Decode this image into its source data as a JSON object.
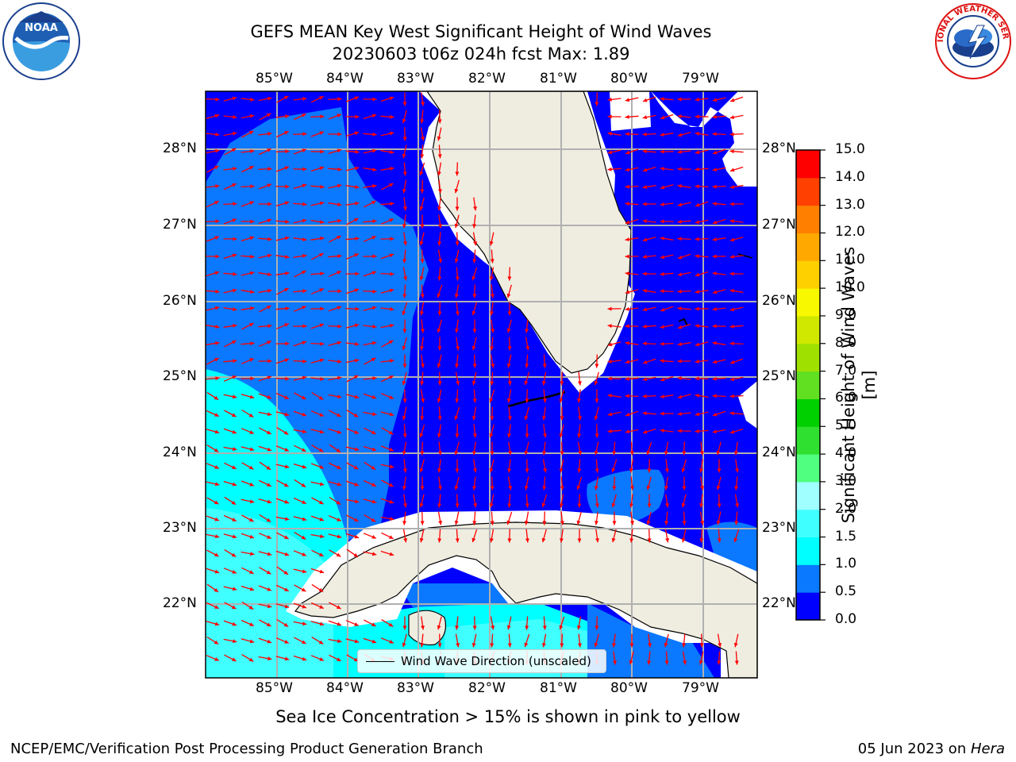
{
  "header": {
    "title_line1": "GEFS MEAN Key West Significant Height of Wind Waves",
    "title_line2": "20230603 t06z 024h fcst   Max: 1.89"
  },
  "logos": {
    "left": {
      "text": "NOAA",
      "ring_text": "NATIONAL OCEANIC AND ATMOSPHERIC ADMINISTRATION · U.S. DEPARTMENT OF COMMERCE"
    },
    "right": {
      "ring_text": "NATIONAL WEATHER SERVICE"
    }
  },
  "map": {
    "lon_labels": [
      "85°W",
      "84°W",
      "83°W",
      "82°W",
      "81°W",
      "80°W",
      "79°W"
    ],
    "lat_labels": [
      "28°N",
      "27°N",
      "26°N",
      "25°N",
      "24°N",
      "23°N",
      "22°N"
    ],
    "legend_label": "Wind Wave Direction (unscaled)",
    "colors": {
      "ocean_0_05": "#0000ff",
      "ocean_05_10": "#0a78ff",
      "ocean_10_15": "#00ffff",
      "ocean_15_20": "#40ffff",
      "land": "#efede0",
      "arrow": "#ff0000",
      "grid": "#b0b0b0"
    }
  },
  "colorbar": {
    "label": "Significant Height of Wind Waves [m]",
    "ticks": [
      "0.0",
      "0.5",
      "1.0",
      "1.5",
      "2.0",
      "3.0",
      "4.0",
      "5.0",
      "6.0",
      "7.0",
      "8.0",
      "9.0",
      "10.0",
      "11.0",
      "12.0",
      "13.0",
      "14.0",
      "15.0"
    ],
    "colors": [
      "#0000ff",
      "#0a78ff",
      "#00ffff",
      "#40ffff",
      "#a0ffff",
      "#50ff80",
      "#30e030",
      "#00d000",
      "#60e020",
      "#a0e000",
      "#d0e800",
      "#f8f800",
      "#ffd000",
      "#ffa800",
      "#ff8000",
      "#ff4000",
      "#ff0000"
    ]
  },
  "footer": {
    "ice_note": "Sea Ice Concentration > 15% is shown in pink to yellow",
    "left": "NCEP/EMC/Verification Post Processing Product Generation Branch",
    "right_date": "05 Jun 2023 on ",
    "right_host": "Hera"
  }
}
